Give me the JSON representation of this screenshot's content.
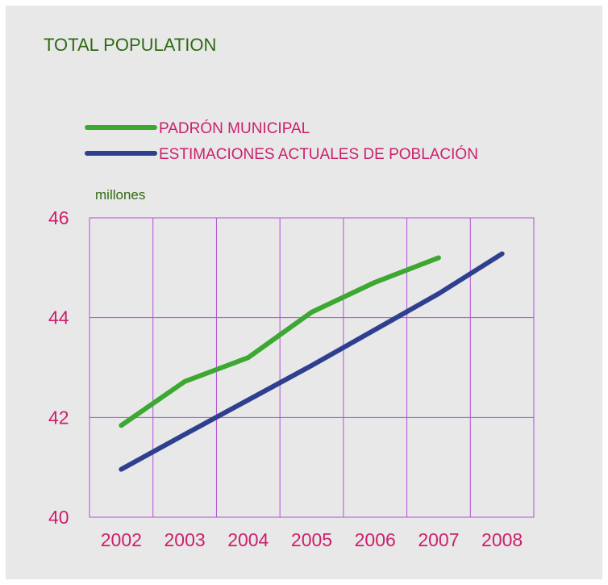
{
  "chart_data": {
    "type": "line",
    "title": "TOTAL POPULATION",
    "ylabel": "millones",
    "xlabel": "",
    "ylim": [
      40,
      46
    ],
    "yticks": [
      40,
      42,
      44,
      46
    ],
    "categories": [
      "2002",
      "2003",
      "2004",
      "2005",
      "2006",
      "2007",
      "2008"
    ],
    "grid": true,
    "legend_position": "top-left",
    "series": [
      {
        "name": "PADRÓN MUNICIPAL",
        "color": "#3ca832",
        "values": [
          41.84,
          42.72,
          43.2,
          44.11,
          44.71,
          45.2,
          null
        ]
      },
      {
        "name": "ESTIMACIONES ACTUALES DE POBLACIÓN",
        "color": "#2f3f8f",
        "values": [
          40.96,
          41.66,
          42.35,
          43.04,
          43.76,
          44.48,
          45.28
        ]
      }
    ]
  }
}
